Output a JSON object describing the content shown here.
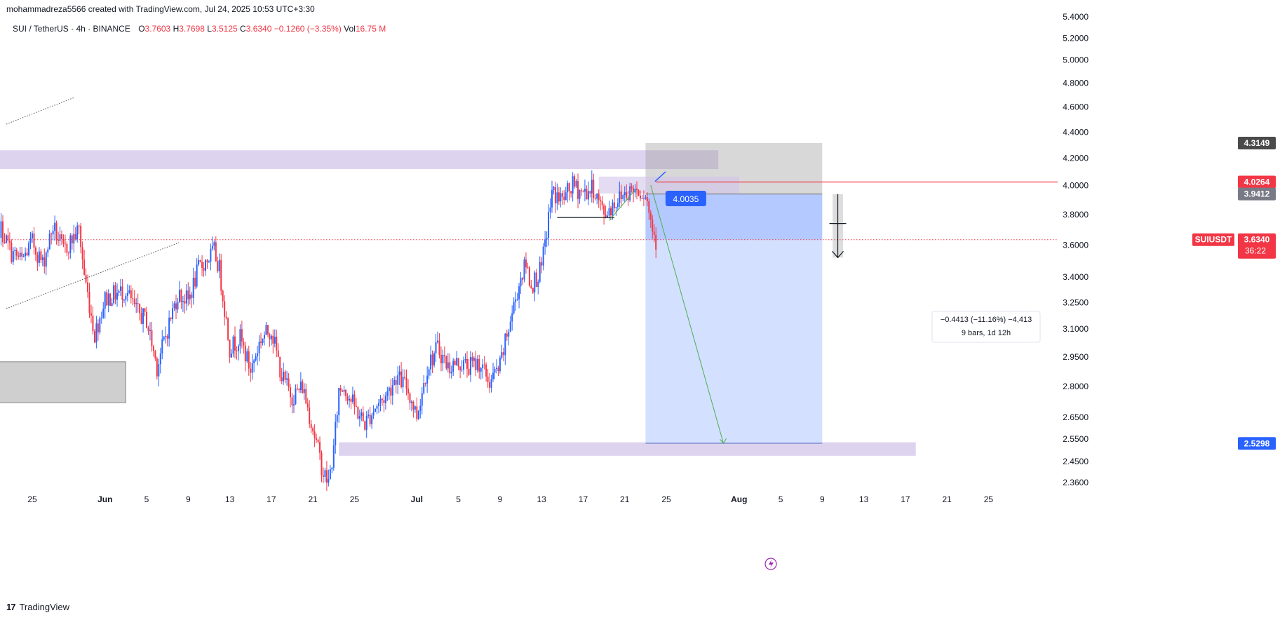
{
  "header": {
    "attribution": "mohammadreza5566 created with TradingView.com, Jul 24, 2025 10:53 UTC+3:30"
  },
  "legend": {
    "symbol": "SUI / TetherUS · 4h · BINANCE",
    "open_label": "O",
    "open": "3.7603",
    "high_label": "H",
    "high": "3.7698",
    "low_label": "L",
    "low": "3.5125",
    "close_label": "C",
    "close": "3.6340",
    "change": "−0.1260 (−3.35%)",
    "vol_label": "Vol",
    "vol": "16.75 M"
  },
  "footer": {
    "brand": "TradingView",
    "logo": "17"
  },
  "colors": {
    "up": "#2962ff",
    "down": "#f23645",
    "zone": "#d1c4e9",
    "grey_zone": "#cfcfcf"
  },
  "chart_data": {
    "type": "candlestick",
    "symbol": "SUIUSDT",
    "timeframe": "4h",
    "price_axis": {
      "ticks": [
        "5.4000",
        "5.2000",
        "5.0000",
        "4.8000",
        "4.6000",
        "4.4000",
        "4.2000",
        "4.0000",
        "3.8000",
        "3.6000",
        "3.4000",
        "3.2500",
        "3.1000",
        "2.9500",
        "2.8000",
        "2.6500",
        "2.5500",
        "2.4500",
        "2.3600"
      ],
      "scale": "log",
      "range": [
        2.33,
        5.45
      ]
    },
    "time_axis": {
      "ticks": [
        {
          "label": "25",
          "date": "2025-05-25",
          "bold": false
        },
        {
          "label": "Jun",
          "date": "2025-06-01",
          "bold": true
        },
        {
          "label": "5",
          "date": "2025-06-05",
          "bold": false
        },
        {
          "label": "9",
          "date": "2025-06-09",
          "bold": false
        },
        {
          "label": "13",
          "date": "2025-06-13",
          "bold": false
        },
        {
          "label": "17",
          "date": "2025-06-17",
          "bold": false
        },
        {
          "label": "21",
          "date": "2025-06-21",
          "bold": false
        },
        {
          "label": "25",
          "date": "2025-06-25",
          "bold": false
        },
        {
          "label": "Jul",
          "date": "2025-07-01",
          "bold": true
        },
        {
          "label": "5",
          "date": "2025-07-05",
          "bold": false
        },
        {
          "label": "9",
          "date": "2025-07-09",
          "bold": false
        },
        {
          "label": "13",
          "date": "2025-07-13",
          "bold": false
        },
        {
          "label": "17",
          "date": "2025-07-17",
          "bold": false
        },
        {
          "label": "21",
          "date": "2025-07-21",
          "bold": false
        },
        {
          "label": "25",
          "date": "2025-07-25",
          "bold": false
        },
        {
          "label": "Aug",
          "date": "2025-08-01",
          "bold": true
        },
        {
          "label": "5",
          "date": "2025-08-05",
          "bold": false
        },
        {
          "label": "9",
          "date": "2025-08-09",
          "bold": false
        },
        {
          "label": "13",
          "date": "2025-08-13",
          "bold": false
        },
        {
          "label": "17",
          "date": "2025-08-17",
          "bold": false
        },
        {
          "label": "21",
          "date": "2025-08-21",
          "bold": false
        },
        {
          "label": "25",
          "date": "2025-08-25",
          "bold": false
        }
      ]
    },
    "path": [
      [
        "2025-05-21T00:00",
        3.98
      ],
      [
        "2025-05-21T12:00",
        3.72
      ],
      [
        "2025-05-22T00:00",
        3.7
      ],
      [
        "2025-05-23T00:00",
        3.55
      ],
      [
        "2025-05-24T00:00",
        3.5
      ],
      [
        "2025-05-25T00:00",
        3.62
      ],
      [
        "2025-05-26T00:00",
        3.48
      ],
      [
        "2025-05-27T00:00",
        3.72
      ],
      [
        "2025-05-28T00:00",
        3.56
      ],
      [
        "2025-05-29T12:00",
        3.7
      ],
      [
        "2025-05-30T00:00",
        3.42
      ],
      [
        "2025-05-31T00:00",
        3.07
      ],
      [
        "2025-06-01T00:00",
        3.27
      ],
      [
        "2025-06-02T00:00",
        3.3
      ],
      [
        "2025-06-03T00:00",
        3.32
      ],
      [
        "2025-06-04T00:00",
        3.2
      ],
      [
        "2025-06-05T00:00",
        3.15
      ],
      [
        "2025-06-06T00:00",
        2.9
      ],
      [
        "2025-06-07T00:00",
        3.1
      ],
      [
        "2025-06-08T00:00",
        3.3
      ],
      [
        "2025-06-09T00:00",
        3.26
      ],
      [
        "2025-06-10T00:00",
        3.45
      ],
      [
        "2025-06-11T00:00",
        3.52
      ],
      [
        "2025-06-11T12:00",
        3.56
      ],
      [
        "2025-06-12T00:00",
        3.45
      ],
      [
        "2025-06-13T00:00",
        3.0
      ],
      [
        "2025-06-14T00:00",
        3.05
      ],
      [
        "2025-06-15T00:00",
        2.88
      ],
      [
        "2025-06-16T00:00",
        3.05
      ],
      [
        "2025-06-17T00:00",
        3.1
      ],
      [
        "2025-06-18T00:00",
        2.85
      ],
      [
        "2025-06-19T00:00",
        2.75
      ],
      [
        "2025-06-20T00:00",
        2.8
      ],
      [
        "2025-06-21T00:00",
        2.6
      ],
      [
        "2025-06-22T00:00",
        2.4
      ],
      [
        "2025-06-22T12:00",
        2.36
      ],
      [
        "2025-06-23T00:00",
        2.5
      ],
      [
        "2025-06-23T12:00",
        2.78
      ],
      [
        "2025-06-24T00:00",
        2.8
      ],
      [
        "2025-06-25T00:00",
        2.7
      ],
      [
        "2025-06-26T00:00",
        2.62
      ],
      [
        "2025-06-27T00:00",
        2.7
      ],
      [
        "2025-06-28T00:00",
        2.75
      ],
      [
        "2025-06-29T00:00",
        2.85
      ],
      [
        "2025-06-30T00:00",
        2.8
      ],
      [
        "2025-07-01T00:00",
        2.66
      ],
      [
        "2025-07-02T00:00",
        2.9
      ],
      [
        "2025-07-03T00:00",
        3.0
      ],
      [
        "2025-07-04T00:00",
        2.9
      ],
      [
        "2025-07-05T00:00",
        2.92
      ],
      [
        "2025-07-06T00:00",
        2.9
      ],
      [
        "2025-07-07T00:00",
        2.92
      ],
      [
        "2025-07-08T00:00",
        2.82
      ],
      [
        "2025-07-09T00:00",
        2.9
      ],
      [
        "2025-07-10T00:00",
        3.15
      ],
      [
        "2025-07-11T00:00",
        3.4
      ],
      [
        "2025-07-11T12:00",
        3.48
      ],
      [
        "2025-07-12T00:00",
        3.35
      ],
      [
        "2025-07-13T00:00",
        3.45
      ],
      [
        "2025-07-14T00:00",
        3.95
      ],
      [
        "2025-07-15T00:00",
        3.9
      ],
      [
        "2025-07-16T00:00",
        4.0
      ],
      [
        "2025-07-17T00:00",
        3.95
      ],
      [
        "2025-07-18T00:00",
        3.98
      ],
      [
        "2025-07-19T00:00",
        3.8
      ],
      [
        "2025-07-20T00:00",
        3.88
      ],
      [
        "2025-07-21T00:00",
        3.95
      ],
      [
        "2025-07-22T00:00",
        3.98
      ],
      [
        "2025-07-23T00:00",
        3.95
      ],
      [
        "2025-07-23T12:00",
        3.76
      ],
      [
        "2025-07-24T00:00",
        3.634
      ]
    ],
    "resistance_zone": {
      "from": "2025-05-21T00:00",
      "to": "2025-07-30T00:00",
      "price_high": 4.26,
      "price_low": 4.12
    },
    "upper_zone": {
      "from": "2025-07-18T12:00",
      "to": "2025-08-01T00:00",
      "price_high": 4.065,
      "price_low": 3.945
    },
    "support_zone": {
      "from": "2025-06-23T12:00",
      "to": "2025-08-18T00:00",
      "price_high": 2.535,
      "price_low": 2.475
    },
    "left_grey_zone": {
      "from": "2025-05-21T00:00",
      "to": "2025-06-03T00:00",
      "price_high": 2.925,
      "price_low": 2.72
    },
    "short_position": {
      "from": "2025-07-23T00:00",
      "to": "2025-08-09T00:00",
      "stop": 4.3149,
      "entry": 3.9412,
      "target": 2.5298
    },
    "projection_arrow": {
      "from": [
        "2025-07-23T12:00",
        4.0035
      ],
      "to": [
        "2025-07-30T12:00",
        2.5298
      ]
    },
    "horizontal_line_red": 4.0264,
    "current_price": 3.634,
    "measure_box": {
      "from": "2025-08-10T00:00",
      "to": "2025-08-11T00:00",
      "price_high": 3.94,
      "price_low": 3.52
    },
    "labels": {
      "callout_price": "4.0035",
      "measure_text_1": "−0.4413 (−11.16%) −4,413",
      "measure_text_2": "9 bars, 1d 12h",
      "tag_stop": "4.3149",
      "tag_red_line": "4.0264",
      "tag_entry": "3.9412",
      "tag_symbol": "SUIUSDT",
      "tag_price": "3.6340",
      "tag_countdown": "36:22",
      "tag_target": "2.5298"
    }
  }
}
